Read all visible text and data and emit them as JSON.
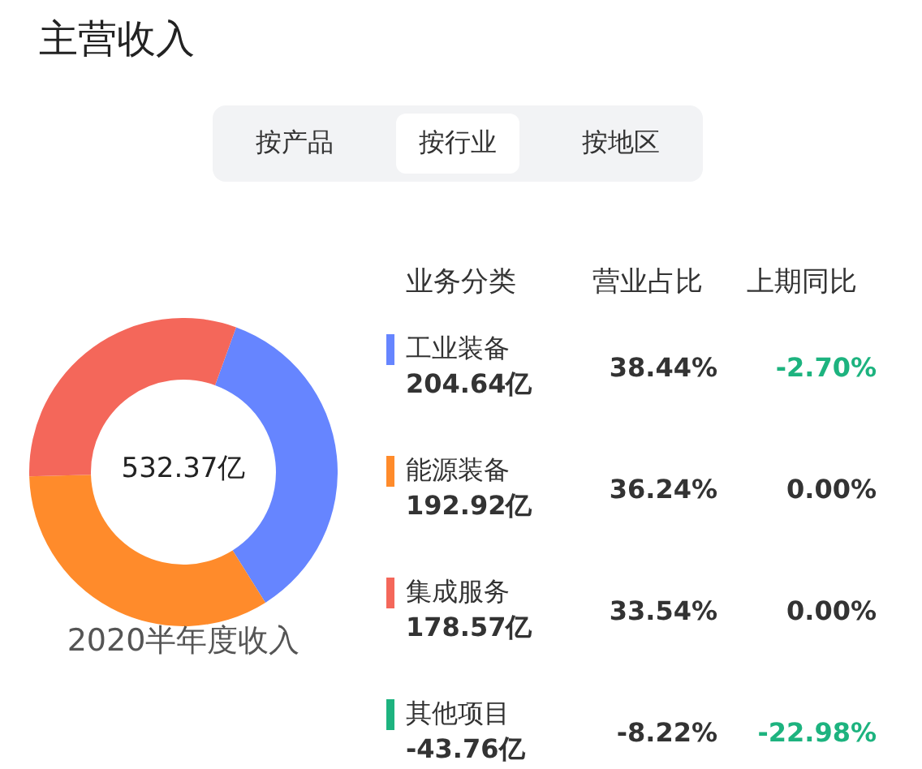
{
  "chart_data": [
    {
      "type": "donut",
      "title": "主营收入",
      "categories": [
        "工业装备",
        "能源装备",
        "集成服务"
      ],
      "values": [
        204.64,
        192.92,
        178.57
      ],
      "value_labels": [
        "204.64亿",
        "192.92亿",
        "178.57亿"
      ],
      "colors": [
        "#6685ff",
        "#ff8b2b",
        "#f4675a"
      ],
      "annotations": [
        "532.37亿",
        "2020半年度收入"
      ],
      "legend": "right"
    },
    {
      "type": "other",
      "annotations": [
        "按产品",
        "按行业",
        "按地区",
        "业务分类",
        "营业占比",
        "上期同比",
        "其他项目",
        "-43.76亿",
        "38.44%",
        "-2.70%",
        "36.24%",
        "0.00%",
        "33.54%",
        "0.00%",
        "-8.22%",
        "-22.98%"
      ],
      "colors": [
        "#1db37f",
        "#333333",
        "#1db37f",
        "#333333",
        "#333333",
        "#333333",
        "#333333",
        "#333333",
        "#1db37f"
      ]
    }
  ]
}
